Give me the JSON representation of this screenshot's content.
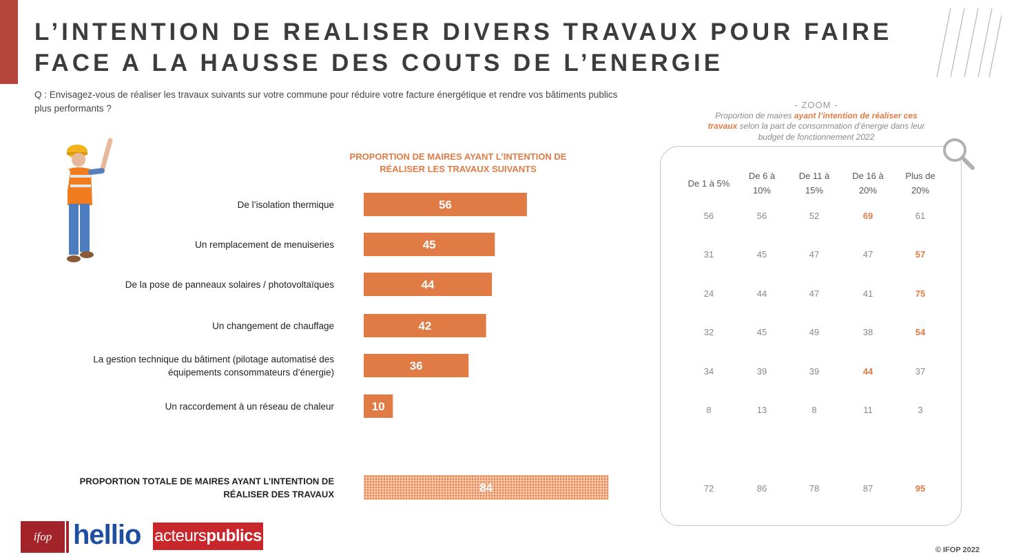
{
  "header": {
    "title": "L’INTENTION DE REALISER DIVERS TRAVAUX POUR FAIRE FACE A LA HAUSSE DES COUTS DE L’ENERGIE",
    "question": "Q : Envisagez-vous de réaliser les travaux suivants sur votre commune pour réduire votre facture énergétique et rendre vos bâtiments publics plus performants ?"
  },
  "colors": {
    "accent": "#b5453a",
    "bar": "#e07b45",
    "highlight": "#e07b45"
  },
  "chart_data": [
    {
      "type": "bar",
      "orientation": "horizontal",
      "title": "PROPORTION DE MAIRES AYANT L’INTENTION DE RÉALISER LES TRAVAUX SUIVANTS",
      "categories": [
        "De l’isolation thermique",
        "Un remplacement de menuiseries",
        "De la pose de panneaux solaires / photovoltaïques",
        "Un changement de chauffage",
        "La gestion technique du bâtiment (pilotage automatisé des équipements consommateurs d’énergie)",
        "Un raccordement à un réseau de chaleur"
      ],
      "values": [
        56,
        45,
        44,
        42,
        36,
        10
      ],
      "xlim": [
        0,
        100
      ],
      "total": {
        "label": "PROPORTION TOTALE DE MAIRES AYANT L’INTENTION DE RÉALISER DES TRAVAUX",
        "value": 84
      }
    },
    {
      "type": "table",
      "title": "- ZOOM -",
      "subtitle_parts": [
        "Proportion de maires ",
        "ayant l’intention de réaliser ces travaux",
        " selon la part de consommation d’énergie dans leur budget de fonctionnement 2022"
      ],
      "columns": [
        "De 1 à 5%",
        "De 6 à 10%",
        "De 11 à 15%",
        "De 16 à 20%",
        "Plus de 20%"
      ],
      "rows": [
        [
          56,
          56,
          52,
          69,
          61
        ],
        [
          31,
          45,
          47,
          47,
          57
        ],
        [
          24,
          44,
          47,
          41,
          75
        ],
        [
          32,
          45,
          49,
          38,
          54
        ],
        [
          34,
          39,
          39,
          44,
          37
        ],
        [
          8,
          13,
          8,
          11,
          3
        ]
      ],
      "highlighted": [
        [
          0,
          3
        ],
        [
          1,
          4
        ],
        [
          2,
          4
        ],
        [
          3,
          4
        ],
        [
          4,
          3
        ]
      ],
      "total_row": [
        72,
        86,
        78,
        87,
        95
      ],
      "total_highlighted": [
        4
      ]
    }
  ],
  "footer": {
    "logo_ifop": "ifop",
    "logo_hellio": "hellio",
    "logo_ap_1": "acteurs",
    "logo_ap_2": "publics",
    "copyright": "© IFOP 2022"
  }
}
